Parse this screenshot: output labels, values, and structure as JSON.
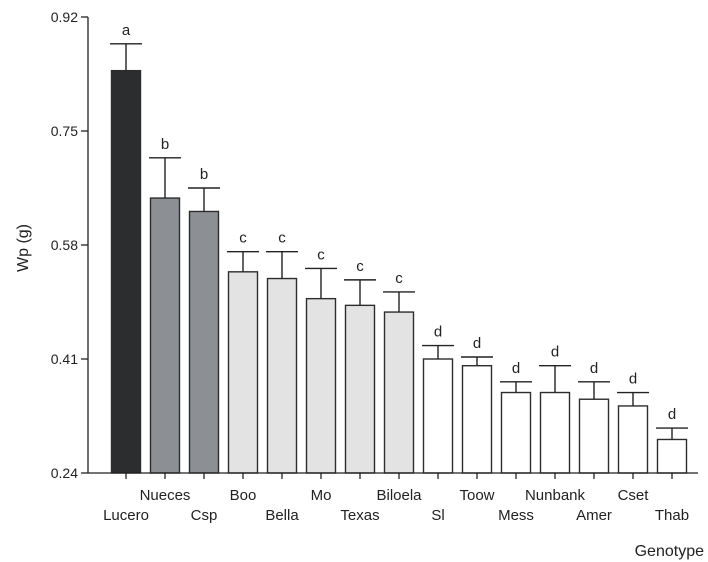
{
  "chart_data": {
    "type": "bar",
    "title": "",
    "xlabel": "Genotype",
    "ylabel": "Wp (g)",
    "ylim": [
      0.24,
      0.92
    ],
    "yticks": [
      "0.24",
      "0.41",
      "0.58",
      "0.75",
      "0.92"
    ],
    "grid": false,
    "categories": [
      "Lucero",
      "Nueces",
      "Csp",
      "Boo",
      "Bella",
      "Mo",
      "Texas",
      "Biloela",
      "Sl",
      "Toow",
      "Mess",
      "Nunbank",
      "Amer",
      "Cset",
      "Thab"
    ],
    "values": [
      0.84,
      0.65,
      0.63,
      0.54,
      0.53,
      0.5,
      0.49,
      0.48,
      0.41,
      0.4,
      0.36,
      0.36,
      0.35,
      0.34,
      0.29
    ],
    "errors": [
      0.04,
      0.06,
      0.035,
      0.03,
      0.04,
      0.045,
      0.038,
      0.03,
      0.02,
      0.013,
      0.016,
      0.04,
      0.026,
      0.02,
      0.017
    ],
    "significance": [
      "a",
      "b",
      "b",
      "c",
      "c",
      "c",
      "c",
      "c",
      "d",
      "d",
      "d",
      "d",
      "d",
      "d",
      "d"
    ],
    "fills": [
      "#2b2d2e",
      "#8c8f94",
      "#8c8f94",
      "#e3e3e3",
      "#e3e3e3",
      "#e3e3e3",
      "#e3e3e3",
      "#e3e3e3",
      "#ffffff",
      "#ffffff",
      "#ffffff",
      "#ffffff",
      "#ffffff",
      "#ffffff",
      "#ffffff"
    ],
    "label_rows": [
      1,
      0,
      1,
      0,
      1,
      0,
      1,
      0,
      1,
      0,
      1,
      0,
      1,
      0,
      1
    ]
  }
}
